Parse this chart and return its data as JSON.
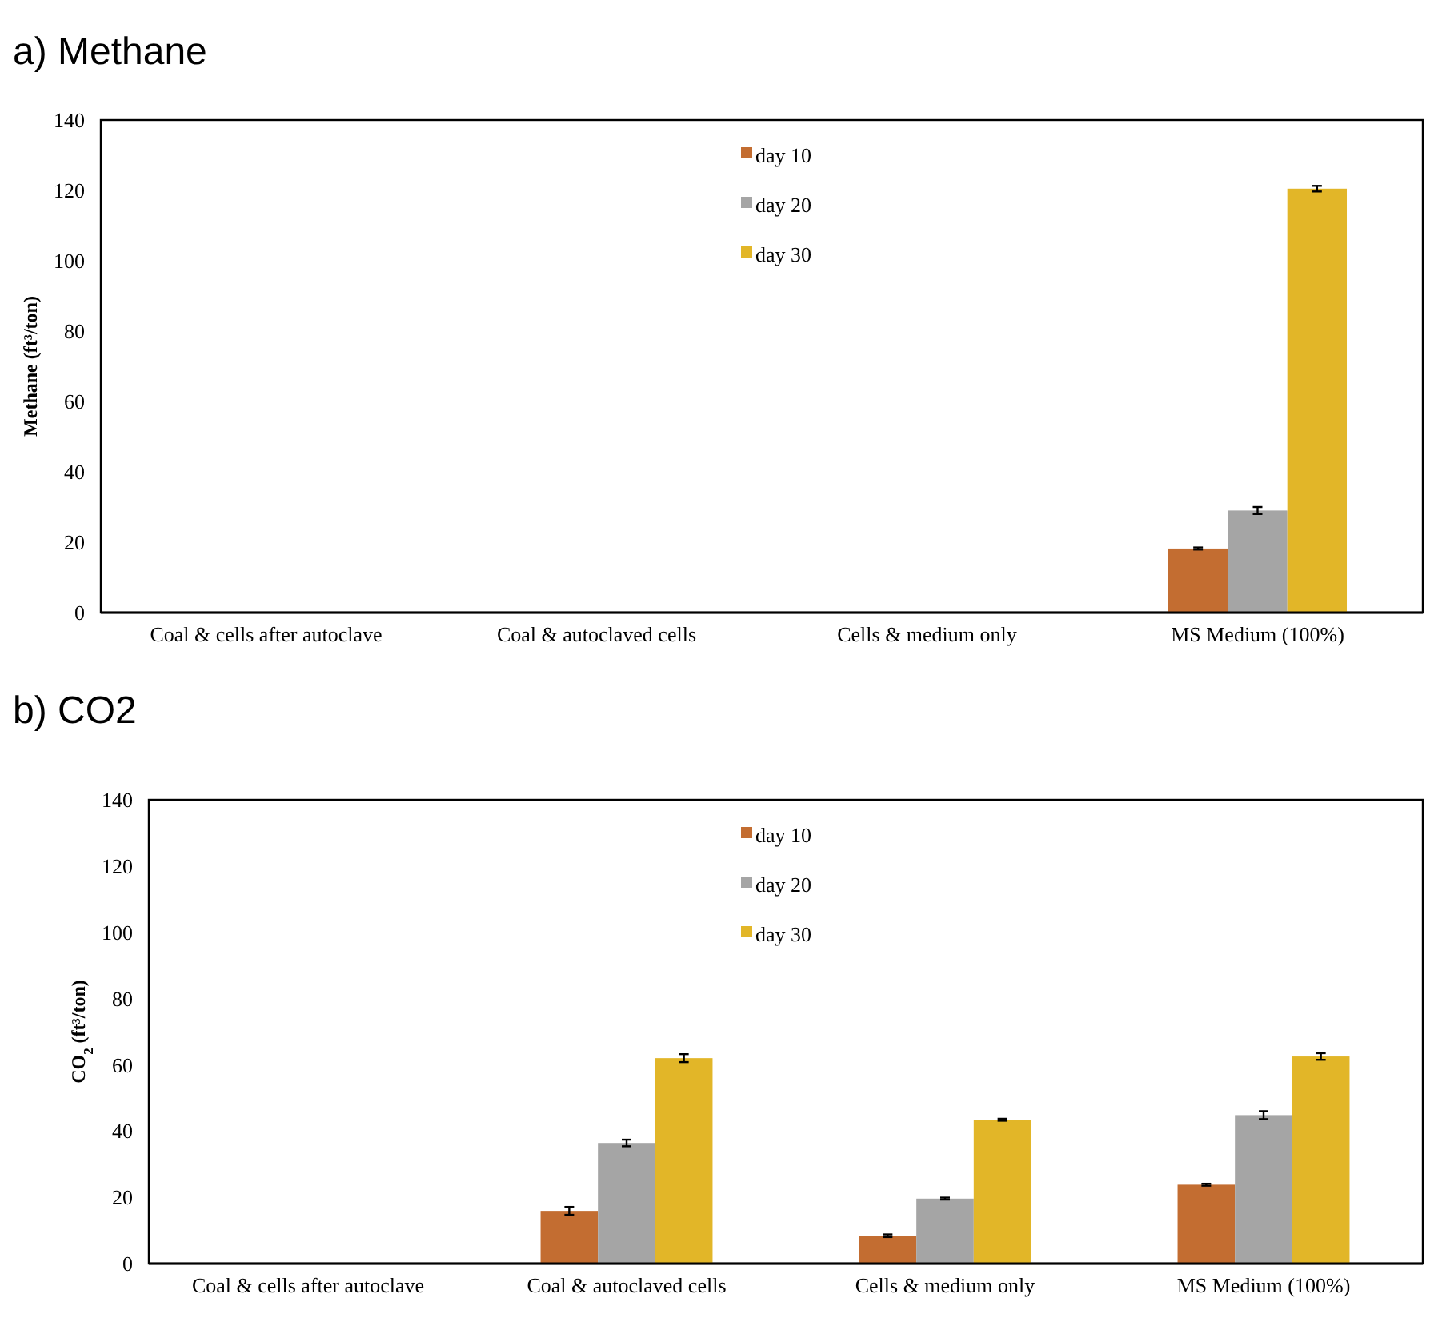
{
  "chart_data": [
    {
      "type": "bar",
      "title": "a) Methane",
      "ylabel": "Methane (ft³/ton)",
      "categories": [
        "Coal & cells after autoclave",
        "Coal & autoclaved cells",
        "Cells & medium only",
        "MS Medium (100%)"
      ],
      "series": [
        {
          "name": "day 10",
          "color": "#c36d31",
          "values": [
            0,
            0,
            0,
            18.2
          ],
          "errors": [
            null,
            null,
            null,
            0.3
          ]
        },
        {
          "name": "day 20",
          "color": "#a5a5a5",
          "values": [
            0,
            0,
            0,
            29
          ],
          "errors": [
            null,
            null,
            null,
            1
          ]
        },
        {
          "name": "day 30",
          "color": "#e2b628",
          "values": [
            0,
            0,
            0,
            120.5
          ],
          "errors": [
            null,
            null,
            null,
            0.8
          ]
        }
      ],
      "ylim": [
        0,
        140
      ],
      "yticks": [
        0,
        20,
        40,
        60,
        80,
        100,
        120,
        140
      ],
      "legend": "top"
    },
    {
      "type": "bar",
      "title": "b) CO2",
      "ylabel": "CO$_{2}$ (ft³/ton)",
      "categories": [
        "Coal & cells after autoclave",
        "Coal & autoclaved cells",
        "Cells & medium only",
        "MS Medium (100%)"
      ],
      "series": [
        {
          "name": "day 10",
          "color": "#c36d31",
          "values": [
            0,
            15.9,
            8.4,
            23.8
          ],
          "errors": [
            null,
            1.2,
            0.4,
            0.3
          ]
        },
        {
          "name": "day 20",
          "color": "#a5a5a5",
          "values": [
            0,
            36.4,
            19.6,
            44.8
          ],
          "errors": [
            null,
            1,
            0.3,
            1.2
          ]
        },
        {
          "name": "day 30",
          "color": "#e2b628",
          "values": [
            0,
            62,
            43.4,
            62.5
          ],
          "errors": [
            null,
            1.2,
            0.3,
            1
          ]
        }
      ],
      "ylim": [
        0,
        140
      ],
      "yticks": [
        0,
        20,
        40,
        60,
        80,
        100,
        120,
        140
      ],
      "legend": "top"
    }
  ]
}
